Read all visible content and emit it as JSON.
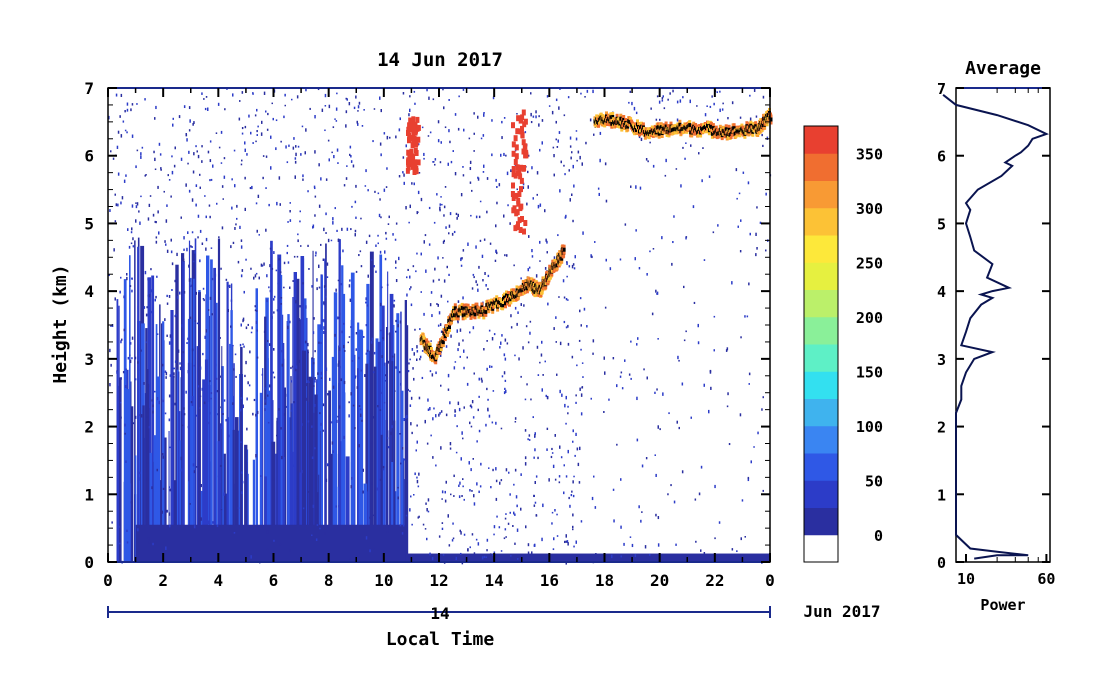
{
  "chart_data": [
    {
      "type": "heatmap",
      "title": "14 Jun 2017",
      "xlabel": "Local Time",
      "ylabel": "Height (km)",
      "x_ticks": [
        "0",
        "2",
        "4",
        "6",
        "8",
        "10",
        "12",
        "14",
        "16",
        "18",
        "20",
        "22",
        "0"
      ],
      "x_range": [
        0,
        24
      ],
      "y_ticks": [
        "0",
        "1",
        "2",
        "3",
        "4",
        "5",
        "6",
        "7"
      ],
      "y_range": [
        0,
        7
      ],
      "date_bar_label": "14",
      "date_suffix": "Jun 2017",
      "colorbar": {
        "ticks": [
          "0",
          "50",
          "100",
          "150",
          "200",
          "250",
          "300",
          "350"
        ],
        "range": [
          0,
          375
        ],
        "colors": [
          "#ffffff",
          "#2a2fa0",
          "#2c3cc8",
          "#2f58e6",
          "#3a85f2",
          "#3fb3ee",
          "#33e0f0",
          "#5ef0c6",
          "#8af099",
          "#bbf06a",
          "#e6f040",
          "#fde83a",
          "#fcc236",
          "#f89a34",
          "#f06e30",
          "#e84030"
        ]
      },
      "features": [
        {
          "name": "low-level echo block",
          "x_range": [
            0.3,
            10.8
          ],
          "height_top_km": [
            1.0,
            4.8
          ],
          "level": "20-60"
        },
        {
          "name": "surface echo",
          "x_range": [
            10.8,
            24
          ],
          "height_km": [
            0,
            0.25
          ],
          "level": "20-50"
        },
        {
          "name": "cloud layer",
          "x": [
            11.3,
            11.8,
            12.5,
            13.5,
            14.5,
            15.2,
            15.6,
            16.0,
            16.5
          ],
          "height_km": [
            3.3,
            3.0,
            3.7,
            3.7,
            3.9,
            4.1,
            4.0,
            4.3,
            4.6
          ],
          "level": "350+"
        },
        {
          "name": "cloud top layer",
          "x": [
            17.6,
            18.5,
            19.5,
            20.5,
            21.5,
            22.5,
            23.5,
            24
          ],
          "height_km": [
            6.55,
            6.5,
            6.35,
            6.4,
            6.4,
            6.35,
            6.4,
            6.6
          ],
          "level": "350+"
        },
        {
          "name": "precipitation streak",
          "x_range": [
            14.6,
            15.1
          ],
          "height_km": [
            4.9,
            6.7
          ],
          "level": "350"
        },
        {
          "name": "precipitation streak",
          "x_range": [
            10.8,
            11.2
          ],
          "height_km": [
            5.8,
            6.6
          ],
          "level": "350"
        }
      ]
    },
    {
      "type": "line",
      "title": "Average",
      "xlabel": "Power",
      "x_ticks": [
        "10",
        "60"
      ],
      "y_ticks": [
        "0",
        "1",
        "2",
        "3",
        "4",
        "5",
        "6",
        "7"
      ],
      "y_range": [
        0,
        7
      ],
      "series": [
        {
          "x": [
            12,
            20,
            40,
            20,
            11,
            8,
            8,
            8,
            8,
            8,
            8,
            9,
            9,
            9,
            10,
            12,
            18,
            9,
            10,
            11,
            14,
            18,
            14,
            18,
            26,
            16,
            18,
            12,
            11,
            10,
            11,
            10,
            13,
            22,
            28,
            24,
            30,
            34,
            40,
            44,
            60,
            40,
            20,
            8,
            6
          ],
          "y": [
            0.05,
            0.1,
            0.1,
            0.15,
            0.2,
            0.4,
            0.8,
            1.2,
            1.6,
            2.0,
            2.2,
            2.4,
            2.5,
            2.6,
            2.8,
            3.0,
            3.1,
            3.2,
            3.4,
            3.6,
            3.8,
            3.9,
            3.95,
            4.0,
            4.05,
            4.2,
            4.4,
            4.6,
            4.8,
            5.0,
            5.2,
            5.3,
            5.5,
            5.7,
            5.85,
            5.9,
            6.0,
            6.05,
            6.15,
            6.25,
            6.32,
            6.45,
            6.6,
            6.75,
            6.9
          ]
        }
      ]
    }
  ]
}
